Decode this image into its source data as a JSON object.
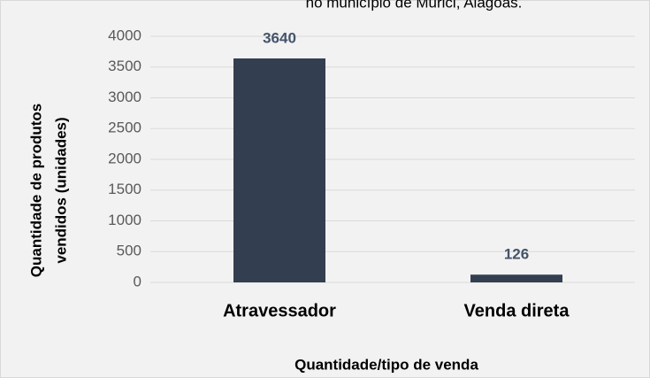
{
  "chart_data": {
    "type": "bar",
    "title": "no município de Murici, Alagoas.",
    "categories": [
      "Atravessador",
      "Venda direta"
    ],
    "values": [
      3640,
      126
    ],
    "color": "#333f50",
    "ylim": [
      0,
      4000
    ],
    "yticks": [
      0,
      500,
      1000,
      1500,
      2000,
      2500,
      3000,
      3500,
      4000
    ],
    "grid": true,
    "xlabel": "Quantidade/tipo  de venda",
    "ylabel": [
      "Quantidade de produtos",
      "vendidos (unidades)"
    ]
  }
}
